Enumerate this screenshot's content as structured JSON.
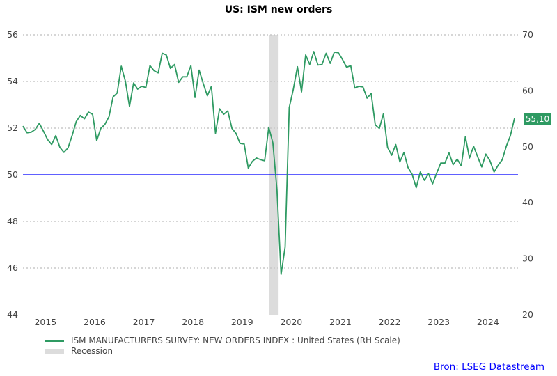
{
  "title": "US: ISM new orders",
  "chart_data": {
    "type": "line",
    "title": "US: ISM new orders",
    "start_month": "2015-01",
    "frequency": "monthly",
    "left_axis": {
      "ylim": [
        44,
        56
      ],
      "ticks": [
        44,
        46,
        48,
        50,
        52,
        54,
        56
      ]
    },
    "right_axis": {
      "ylim": [
        20,
        70
      ],
      "ticks": [
        20,
        30,
        40,
        50,
        60,
        70
      ]
    },
    "x_tick_labels": [
      "2015",
      "2016",
      "2017",
      "2018",
      "2019",
      "2020",
      "2021",
      "2022",
      "2023",
      "2024"
    ],
    "grid": "horizontal dotted",
    "reference_line": {
      "axis": "left",
      "value": 50,
      "color": "#0000ff"
    },
    "series": [
      {
        "name": "ISM MANUFACTURERS SURVEY: NEW ORDERS INDEX : United States (RH Scale)",
        "axis": "right",
        "color": "#2e9a62",
        "values": [
          53.7,
          52.5,
          52.6,
          53.1,
          54.2,
          52.8,
          51.3,
          50.4,
          52.0,
          49.9,
          49.0,
          49.8,
          52.0,
          54.5,
          55.6,
          55.0,
          56.2,
          55.8,
          51.1,
          53.3,
          54.0,
          55.4,
          58.9,
          59.6,
          64.4,
          61.7,
          57.2,
          61.4,
          60.3,
          60.8,
          60.6,
          64.5,
          63.6,
          63.2,
          66.7,
          66.4,
          64.0,
          64.7,
          61.5,
          62.5,
          62.5,
          64.5,
          58.8,
          63.7,
          61.3,
          59.1,
          60.8,
          52.4,
          56.8,
          55.8,
          56.4,
          53.3,
          52.4,
          50.6,
          50.5,
          46.2,
          47.4,
          48.0,
          47.7,
          47.5,
          53.5,
          50.7,
          42.3,
          27.2,
          32.1,
          57.0,
          60.3,
          64.3,
          59.8,
          66.4,
          64.7,
          67.0,
          64.6,
          64.7,
          66.7,
          64.9,
          66.9,
          66.8,
          65.6,
          64.2,
          64.5,
          60.5,
          60.8,
          60.7,
          58.7,
          59.5,
          53.9,
          53.3,
          55.9,
          49.9,
          48.5,
          50.4,
          47.3,
          49.0,
          46.3,
          45.1,
          42.7,
          45.5,
          44.0,
          45.2,
          43.4,
          45.3,
          47.1,
          47.1,
          48.9,
          46.8,
          47.8,
          46.6,
          51.8,
          48.0,
          50.1,
          48.2,
          46.4,
          48.7,
          47.5,
          45.5,
          46.7,
          47.7,
          50.1,
          52.0,
          55.1
        ]
      }
    ],
    "recession": {
      "name": "Recession",
      "start": "2020-02",
      "end": "2020-04",
      "color": "#dcdcdc"
    },
    "last_value_label": "55,10",
    "legend_placement": "bottom-left"
  },
  "source": "Bron: LSEG Datastream"
}
